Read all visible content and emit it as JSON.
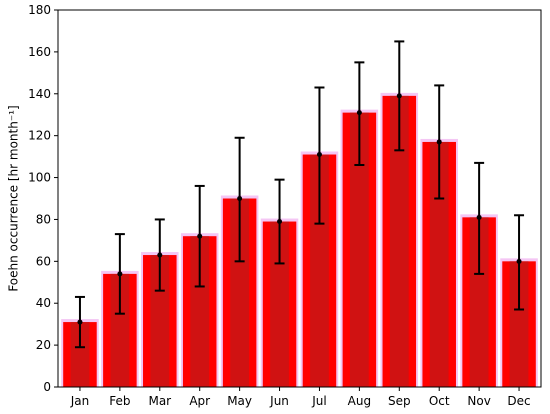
{
  "chart_data": {
    "type": "bar",
    "ylabel": "Foehn occurrence [hr month⁻¹]",
    "xlabel": "",
    "ylim": [
      0,
      180
    ],
    "yticks": [
      0,
      20,
      40,
      60,
      80,
      100,
      120,
      140,
      160,
      180
    ],
    "categories": [
      "Jan",
      "Feb",
      "Mar",
      "Apr",
      "May",
      "Jun",
      "Jul",
      "Aug",
      "Sep",
      "Oct",
      "Nov",
      "Dec"
    ],
    "values": [
      31,
      54,
      63,
      72,
      90,
      79,
      111,
      131,
      139,
      117,
      81,
      60
    ],
    "error_low": [
      19,
      35,
      46,
      48,
      60,
      59,
      78,
      106,
      113,
      90,
      54,
      37
    ],
    "error_high": [
      43,
      73,
      80,
      96,
      119,
      99,
      143,
      155,
      165,
      144,
      107,
      82
    ],
    "grid": false,
    "colors": {
      "bar": "#ff0000",
      "bar_shadow": "#f4c6f4",
      "bar_inner": "#c01818",
      "error": "#000000"
    }
  }
}
